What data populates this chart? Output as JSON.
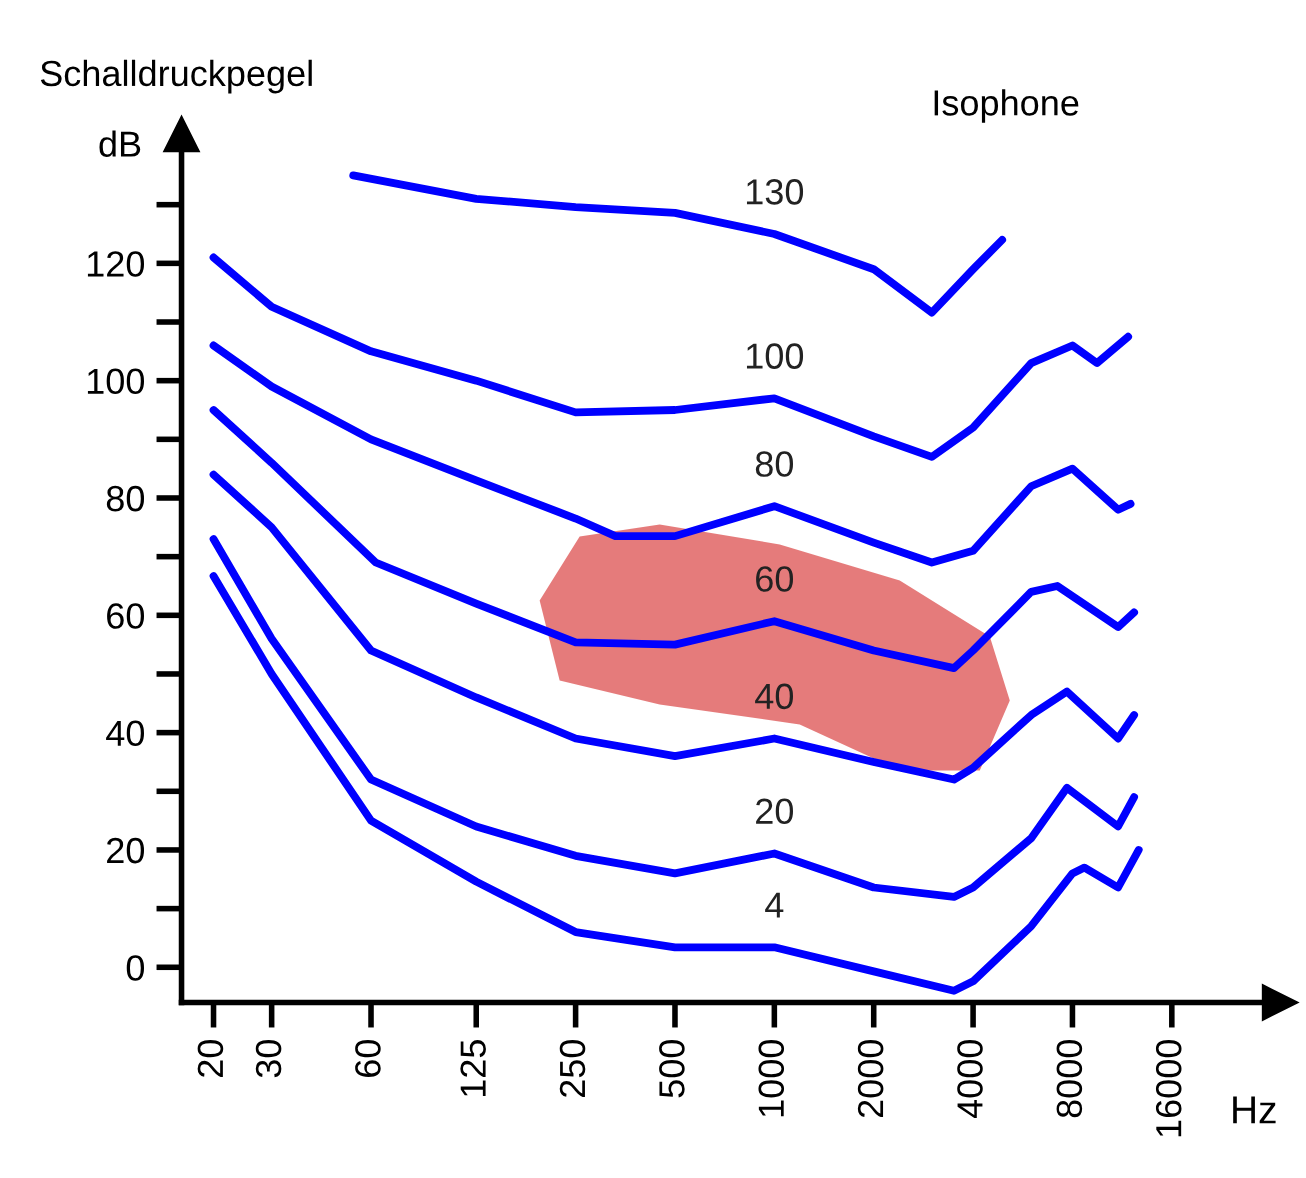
{
  "chart_data": {
    "type": "line",
    "title": "Isophone",
    "xlabel": "Hz",
    "ylabel": "Schalldruckpegel",
    "annotations": [
      "dB"
    ],
    "log": "x",
    "grid": false,
    "legend": false,
    "marker": "none",
    "line_style": "solid",
    "xlim": [
      16,
      34000
    ],
    "ylim": [
      -6,
      142
    ],
    "xticks": [
      20,
      30,
      60,
      125,
      250,
      500,
      1000,
      2000,
      4000,
      8000,
      16000
    ],
    "yticks": [
      0,
      {
        "value": 10,
        "label": null
      },
      20,
      {
        "value": 30,
        "label": null
      },
      40,
      {
        "value": 50,
        "label": null
      },
      60,
      {
        "value": 70,
        "label": null
      },
      80,
      {
        "value": 90,
        "label": null
      },
      100,
      {
        "value": 110,
        "label": null
      },
      120,
      {
        "value": 130,
        "label": null
      }
    ],
    "series": [
      {
        "name": "130",
        "color": "#0000ff",
        "x": [
          53,
          125,
          250,
          500,
          1000,
          2000,
          3000,
          4000,
          4900
        ],
        "values": [
          135,
          131,
          129.6,
          128.6,
          125,
          119,
          111.6,
          119,
          124
        ]
      },
      {
        "name": "100",
        "color": "#0000ff",
        "x": [
          20,
          30,
          60,
          125,
          250,
          500,
          1000,
          2000,
          3000,
          4000,
          6000,
          8000,
          9500,
          11800
        ],
        "values": [
          121,
          112.6,
          105,
          100,
          94.6,
          95,
          97,
          90.5,
          87,
          92,
          103,
          106,
          103,
          107.5
        ]
      },
      {
        "name": "80",
        "color": "#0000ff",
        "x": [
          20,
          30,
          60,
          125,
          250,
          330,
          500,
          1000,
          2000,
          3000,
          4000,
          6000,
          8000,
          11000,
          12000
        ],
        "values": [
          106,
          99,
          90,
          83,
          76.5,
          73.5,
          73.5,
          78.6,
          72.4,
          69,
          71,
          82,
          85,
          78,
          79
        ]
      },
      {
        "name": "60",
        "color": "#0000ff",
        "x": [
          20,
          30,
          62,
          125,
          250,
          500,
          1000,
          2000,
          3500,
          4000,
          6000,
          7200,
          11000,
          12300
        ],
        "values": [
          95,
          86,
          69,
          62,
          55.4,
          55,
          59,
          54,
          51,
          54,
          64,
          65,
          58,
          60.5
        ]
      },
      {
        "name": "40",
        "color": "#0000ff",
        "x": [
          20,
          30,
          60,
          125,
          250,
          500,
          1000,
          2000,
          3500,
          4000,
          6000,
          7700,
          11000,
          12300
        ],
        "values": [
          84,
          75,
          54,
          46,
          39,
          36,
          39,
          35,
          32,
          34,
          43,
          47,
          39,
          43
        ]
      },
      {
        "name": "20",
        "color": "#0000ff",
        "x": [
          20,
          30,
          60,
          125,
          250,
          500,
          1000,
          2000,
          3500,
          4000,
          6000,
          7700,
          11000,
          12300
        ],
        "values": [
          73,
          56,
          32,
          24,
          19,
          16,
          19.4,
          13.6,
          12,
          13.6,
          22,
          30.6,
          24,
          29
        ]
      },
      {
        "name": "4",
        "color": "#0000ff",
        "x": [
          20,
          30,
          60,
          125,
          250,
          500,
          1000,
          2000,
          3500,
          4000,
          6000,
          8000,
          8700,
          11000,
          12700
        ],
        "values": [
          66.7,
          50,
          25,
          14.6,
          6,
          3.4,
          3.4,
          -0.7,
          -4,
          -2.4,
          7,
          16,
          17,
          13.6,
          20
        ]
      }
    ]
  }
}
